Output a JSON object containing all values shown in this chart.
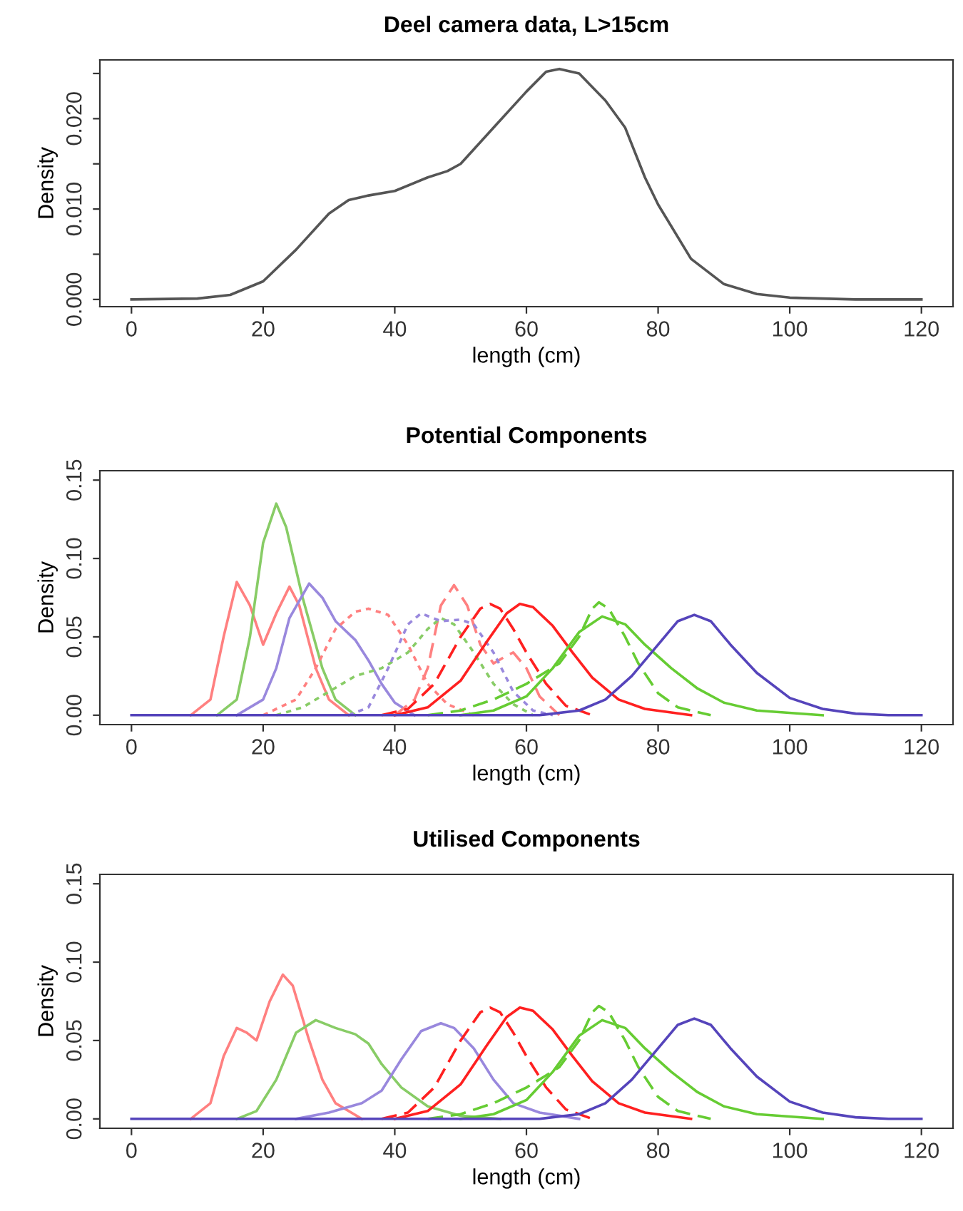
{
  "chart_data": [
    {
      "type": "line",
      "title": "Deel camera data, L>15cm",
      "xlabel": "length (cm)",
      "ylabel": "Density",
      "xlim": [
        -4.8,
        124.8
      ],
      "ylim": [
        -0.0008,
        0.0265
      ],
      "xticks": [
        0,
        20,
        40,
        60,
        80,
        100,
        120
      ],
      "yticks": [
        {
          "value": 0,
          "label": "0.000"
        },
        {
          "value": 0.005,
          "label": null
        },
        {
          "value": 0.01,
          "label": "0.010"
        },
        {
          "value": 0.015,
          "label": null
        },
        {
          "value": 0.02,
          "label": "0.020"
        },
        {
          "value": 0.025,
          "label": null
        }
      ],
      "grid": false,
      "legend": false,
      "marker": "none",
      "series": [
        {
          "color": "#555555",
          "line_style": "solid",
          "x": [
            0,
            10,
            15,
            20,
            25,
            30,
            33,
            36,
            40,
            45,
            48,
            50,
            55,
            60,
            63,
            65,
            68,
            72,
            75,
            78,
            80,
            85,
            90,
            95,
            100,
            110,
            120
          ],
          "values": [
            0,
            0.0001,
            0.0005,
            0.002,
            0.0055,
            0.0095,
            0.011,
            0.0115,
            0.012,
            0.0135,
            0.0142,
            0.015,
            0.019,
            0.023,
            0.0252,
            0.0255,
            0.025,
            0.022,
            0.019,
            0.0135,
            0.0105,
            0.0045,
            0.0017,
            0.0006,
            0.0002,
            0,
            0
          ]
        }
      ]
    },
    {
      "type": "line",
      "title": "Potential Components",
      "xlabel": "length (cm)",
      "ylabel": "Density",
      "xlim": [
        -4.8,
        124.8
      ],
      "ylim": [
        -0.006,
        0.156
      ],
      "xticks": [
        0,
        20,
        40,
        60,
        80,
        100,
        120
      ],
      "yticks": [
        {
          "value": 0,
          "label": "0.00"
        },
        {
          "value": 0.05,
          "label": "0.05"
        },
        {
          "value": 0.1,
          "label": "0.10"
        },
        {
          "value": 0.15,
          "label": "0.15"
        }
      ],
      "grid": false,
      "legend": false,
      "marker": "none",
      "series": [
        {
          "color": "#ff8080",
          "line_style": "solid",
          "x": [
            9,
            12,
            14,
            16,
            18,
            20,
            22,
            24,
            25.5,
            28,
            30,
            33
          ],
          "values": [
            0,
            0.01,
            0.05,
            0.085,
            0.07,
            0.045,
            0.065,
            0.082,
            0.07,
            0.03,
            0.01,
            0
          ]
        },
        {
          "color": "#88cc66",
          "line_style": "solid",
          "x": [
            13,
            16,
            18,
            20,
            22,
            23.5,
            26,
            29,
            31,
            34
          ],
          "values": [
            0,
            0.01,
            0.05,
            0.11,
            0.135,
            0.12,
            0.075,
            0.03,
            0.01,
            0
          ]
        },
        {
          "color": "#9988dd",
          "line_style": "solid",
          "x": [
            16,
            20,
            22,
            24,
            27,
            29,
            31,
            34,
            36,
            38,
            40,
            43
          ],
          "values": [
            0,
            0.01,
            0.03,
            0.062,
            0.084,
            0.075,
            0.06,
            0.048,
            0.035,
            0.02,
            0.008,
            0
          ]
        },
        {
          "color": "#ff8080",
          "line_style": "dotted",
          "x": [
            20,
            25,
            28,
            31,
            34,
            36,
            39,
            42,
            45,
            48,
            52
          ],
          "values": [
            0,
            0.01,
            0.03,
            0.055,
            0.066,
            0.068,
            0.064,
            0.045,
            0.02,
            0.007,
            0
          ]
        },
        {
          "color": "#ff8080",
          "line_style": "dashed",
          "x": [
            40,
            43,
            45,
            47,
            49,
            51,
            53,
            55,
            57,
            58,
            60,
            62,
            65
          ],
          "values": [
            0,
            0.01,
            0.03,
            0.07,
            0.083,
            0.07,
            0.045,
            0.033,
            0.038,
            0.04,
            0.03,
            0.012,
            0
          ]
        },
        {
          "color": "#88cc66",
          "line_style": "dotted",
          "x": [
            22,
            26,
            30,
            34,
            38,
            42,
            45,
            47,
            49,
            52,
            55,
            58,
            61
          ],
          "values": [
            0,
            0.005,
            0.015,
            0.025,
            0.03,
            0.04,
            0.055,
            0.062,
            0.058,
            0.04,
            0.02,
            0.007,
            0
          ]
        },
        {
          "color": "#9988dd",
          "line_style": "dotted",
          "x": [
            33,
            36,
            39,
            42,
            44,
            47,
            50,
            52,
            55,
            58,
            61,
            64
          ],
          "values": [
            0,
            0.005,
            0.03,
            0.058,
            0.065,
            0.06,
            0.061,
            0.058,
            0.04,
            0.015,
            0.003,
            0
          ]
        },
        {
          "color": "#ff2020",
          "line_style": "dashed",
          "x": [
            38,
            42,
            46,
            50,
            53,
            54.5,
            56,
            58,
            60,
            63,
            66,
            70
          ],
          "values": [
            0,
            0.004,
            0.02,
            0.05,
            0.068,
            0.071,
            0.068,
            0.055,
            0.04,
            0.02,
            0.006,
            0
          ]
        },
        {
          "color": "#ff2020",
          "line_style": "solid",
          "x": [
            40,
            45,
            50,
            54,
            57,
            59,
            61,
            64,
            67,
            70,
            74,
            78,
            85
          ],
          "values": [
            0,
            0.005,
            0.022,
            0.047,
            0.065,
            0.071,
            0.069,
            0.057,
            0.04,
            0.024,
            0.01,
            0.004,
            0
          ]
        },
        {
          "color": "#66cc33",
          "line_style": "dashed",
          "x": [
            45,
            50,
            55,
            60,
            65,
            68,
            70,
            71,
            72.5,
            75,
            77,
            80,
            83,
            88
          ],
          "values": [
            0,
            0.003,
            0.01,
            0.02,
            0.033,
            0.05,
            0.068,
            0.072,
            0.068,
            0.05,
            0.033,
            0.014,
            0.005,
            0
          ]
        },
        {
          "color": "#66cc33",
          "line_style": "solid",
          "x": [
            50,
            55,
            60,
            64,
            68,
            71.5,
            75,
            78,
            82,
            86,
            90,
            95,
            105
          ],
          "values": [
            0,
            0.003,
            0.012,
            0.03,
            0.053,
            0.063,
            0.058,
            0.045,
            0.03,
            0.017,
            0.008,
            0.003,
            0
          ]
        },
        {
          "color": "#5544bb",
          "line_style": "solid",
          "x": [
            0,
            62,
            68,
            72,
            76,
            80,
            83,
            85.5,
            88,
            91,
            95,
            100,
            105,
            110,
            115,
            120
          ],
          "values": [
            0,
            0,
            0.003,
            0.01,
            0.025,
            0.045,
            0.06,
            0.064,
            0.06,
            0.045,
            0.027,
            0.011,
            0.004,
            0.001,
            0,
            0
          ]
        }
      ]
    },
    {
      "type": "line",
      "title": "Utilised Components",
      "xlabel": "length (cm)",
      "ylabel": "Density",
      "xlim": [
        -4.8,
        124.8
      ],
      "ylim": [
        -0.006,
        0.156
      ],
      "xticks": [
        0,
        20,
        40,
        60,
        80,
        100,
        120
      ],
      "yticks": [
        {
          "value": 0,
          "label": "0.00"
        },
        {
          "value": 0.05,
          "label": "0.05"
        },
        {
          "value": 0.1,
          "label": "0.10"
        },
        {
          "value": 0.15,
          "label": "0.15"
        }
      ],
      "grid": false,
      "legend": false,
      "marker": "none",
      "series": [
        {
          "color": "#ff8080",
          "line_style": "solid",
          "x": [
            9,
            12,
            14,
            16,
            17.5,
            19,
            21,
            23,
            24.5,
            27,
            29,
            31,
            35
          ],
          "values": [
            0,
            0.01,
            0.04,
            0.058,
            0.055,
            0.05,
            0.075,
            0.092,
            0.085,
            0.05,
            0.025,
            0.01,
            0
          ]
        },
        {
          "color": "#88cc66",
          "line_style": "solid",
          "x": [
            16,
            19,
            22,
            25,
            28,
            31,
            34,
            36,
            38,
            41,
            45,
            50,
            56
          ],
          "values": [
            0,
            0.005,
            0.025,
            0.055,
            0.063,
            0.058,
            0.054,
            0.048,
            0.035,
            0.02,
            0.008,
            0.002,
            0
          ]
        },
        {
          "color": "#9988dd",
          "line_style": "solid",
          "x": [
            25,
            30,
            35,
            38,
            41,
            44,
            47,
            49,
            52,
            55,
            58,
            62,
            68
          ],
          "values": [
            0,
            0.004,
            0.01,
            0.018,
            0.038,
            0.056,
            0.061,
            0.058,
            0.045,
            0.025,
            0.01,
            0.004,
            0
          ]
        },
        {
          "color": "#ff2020",
          "line_style": "dashed",
          "x": [
            38,
            42,
            46,
            50,
            53,
            54.5,
            56,
            58,
            60,
            63,
            66,
            70
          ],
          "values": [
            0,
            0.004,
            0.02,
            0.05,
            0.068,
            0.071,
            0.068,
            0.055,
            0.04,
            0.02,
            0.006,
            0
          ]
        },
        {
          "color": "#ff2020",
          "line_style": "solid",
          "x": [
            40,
            45,
            50,
            54,
            57,
            59,
            61,
            64,
            67,
            70,
            74,
            78,
            85
          ],
          "values": [
            0,
            0.005,
            0.022,
            0.047,
            0.065,
            0.071,
            0.069,
            0.057,
            0.04,
            0.024,
            0.01,
            0.004,
            0
          ]
        },
        {
          "color": "#66cc33",
          "line_style": "dashed",
          "x": [
            45,
            50,
            55,
            60,
            65,
            68,
            70,
            71,
            72.5,
            75,
            77,
            80,
            83,
            88
          ],
          "values": [
            0,
            0.003,
            0.01,
            0.02,
            0.033,
            0.05,
            0.068,
            0.072,
            0.068,
            0.05,
            0.033,
            0.014,
            0.005,
            0
          ]
        },
        {
          "color": "#66cc33",
          "line_style": "solid",
          "x": [
            50,
            55,
            60,
            64,
            68,
            71.5,
            75,
            78,
            82,
            86,
            90,
            95,
            105
          ],
          "values": [
            0,
            0.003,
            0.012,
            0.03,
            0.053,
            0.063,
            0.058,
            0.045,
            0.03,
            0.017,
            0.008,
            0.003,
            0
          ]
        },
        {
          "color": "#5544bb",
          "line_style": "solid",
          "x": [
            0,
            62,
            68,
            72,
            76,
            80,
            83,
            85.5,
            88,
            91,
            95,
            100,
            105,
            110,
            115,
            120
          ],
          "values": [
            0,
            0,
            0.003,
            0.01,
            0.025,
            0.045,
            0.06,
            0.064,
            0.06,
            0.045,
            0.027,
            0.011,
            0.004,
            0.001,
            0,
            0
          ]
        }
      ]
    }
  ]
}
